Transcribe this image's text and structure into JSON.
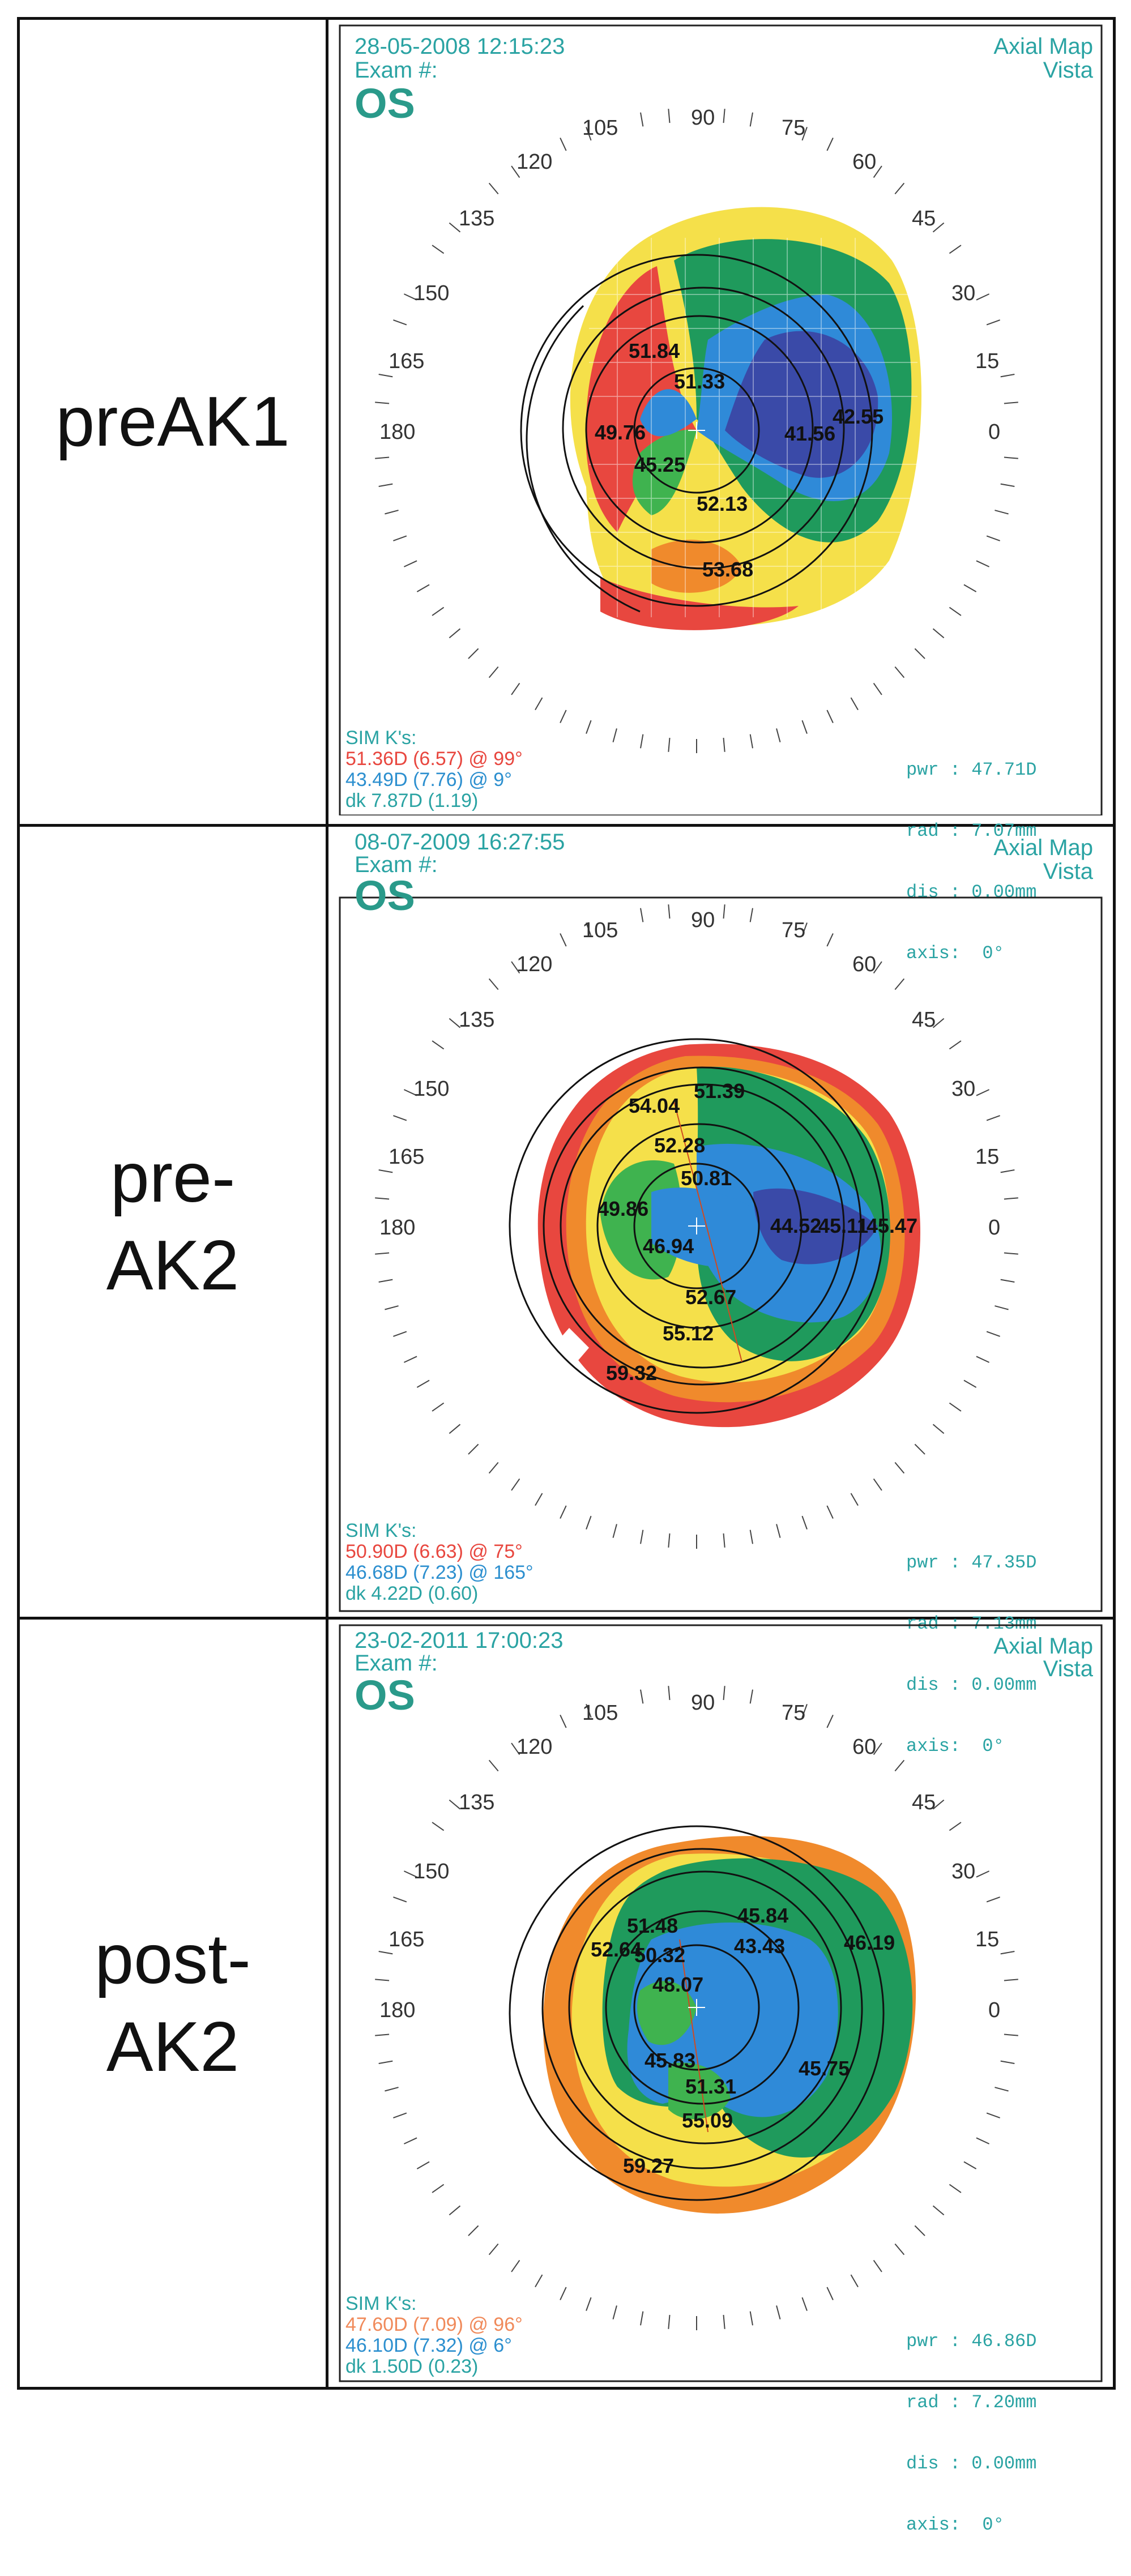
{
  "rows": [
    {
      "label_lines": [
        "preAK1"
      ],
      "header": {
        "date": "28-05-2008 12:15:23",
        "exam": "Exam #:",
        "eye": "OS",
        "map_type": "Axial Map",
        "device": "Vista"
      },
      "angle_labels": [
        "105",
        "90",
        "75",
        "120",
        "60",
        "135",
        "45",
        "150",
        "30",
        "165",
        "15",
        "180",
        "0"
      ],
      "k_values": [
        "51.84",
        "51.33",
        "49.76",
        "45.25",
        "41.56",
        "42.55",
        "52.13",
        "53.68"
      ],
      "sim_k": {
        "title": "SIM K's:",
        "steep": "51.36D (6.57) @ 99°",
        "flat": "43.49D (7.76) @  9°",
        "delta": "dk  7.87D (1.19)"
      },
      "readout": {
        "pwr": "pwr : 47.71D",
        "rad": "rad : 7.07mm",
        "dis": "dis : 0.00mm",
        "axis": "axis:  0°"
      }
    },
    {
      "label_lines": [
        "pre-",
        "AK2"
      ],
      "header": {
        "date": "08-07-2009 16:27:55",
        "exam": "Exam #:",
        "eye": "OS",
        "map_type": "Axial Map",
        "device": "Vista"
      },
      "angle_labels": [
        "105",
        "90",
        "75",
        "120",
        "60",
        "135",
        "45",
        "150",
        "30",
        "165",
        "15",
        "180",
        "0"
      ],
      "k_values": [
        "54.04",
        "51.39",
        "52.28",
        "50.81",
        "49.86",
        "46.94",
        "44.52",
        "45.11",
        "45.47",
        "52.67",
        "55.12",
        "59.32"
      ],
      "sim_k": {
        "title": "SIM K's:",
        "steep": "50.90D (6.63) @ 75°",
        "flat": "46.68D (7.23) @ 165°",
        "delta": "dk  4.22D (0.60)"
      },
      "readout": {
        "pwr": "pwr : 47.35D",
        "rad": "rad : 7.13mm",
        "dis": "dis : 0.00mm",
        "axis": "axis:  0°"
      }
    },
    {
      "label_lines": [
        "post-",
        "AK2"
      ],
      "header": {
        "date": "23-02-2011 17:00:23",
        "exam": "Exam #:",
        "eye": "OS",
        "map_type": "Axial Map",
        "device": "Vista"
      },
      "angle_labels": [
        "105",
        "90",
        "75",
        "120",
        "60",
        "135",
        "45",
        "150",
        "30",
        "165",
        "15",
        "180",
        "0"
      ],
      "k_values": [
        "51.48",
        "45.84",
        "52.64",
        "50.32",
        "43.43",
        "46.19",
        "48.07",
        "45.83",
        "51.31",
        "45.75",
        "55.09",
        "59.27"
      ],
      "sim_k": {
        "title": "SIM K's:",
        "steep": "47.60D (7.09) @ 96°",
        "flat": "46.10D (7.32) @  6°",
        "delta": "dk  1.50D (0.23)"
      },
      "readout": {
        "pwr": "pwr : 46.86D",
        "rad": "rad : 7.20mm",
        "dis": "dis : 0.00mm",
        "axis": "axis:  0°"
      }
    }
  ],
  "colors": {
    "steep_red": "#e8473f",
    "orange": "#f08a2c",
    "yellow": "#f5e04a",
    "green": "#3fb34f",
    "teal_green": "#1f9a5c",
    "blue": "#2f8ad8",
    "dark_blue": "#3a4aa8",
    "text_teal": "#2aa3a3"
  }
}
